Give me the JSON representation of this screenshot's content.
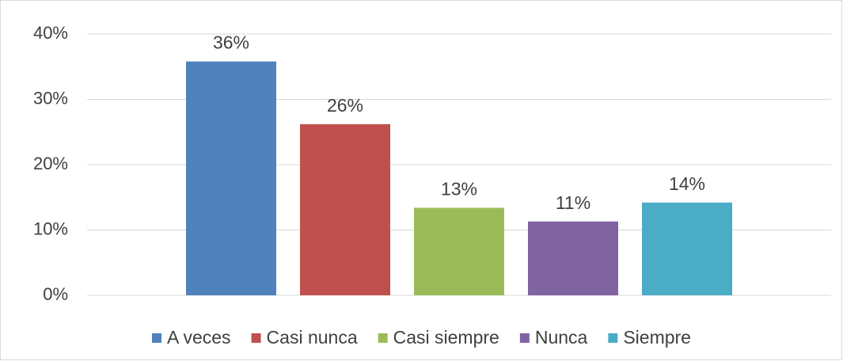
{
  "chart_data": {
    "type": "bar",
    "series": [
      {
        "name": "A veces",
        "color": "#4f81bd",
        "values": [
          35.8
        ],
        "value_labels": [
          "36%"
        ]
      },
      {
        "name": "Casi nunca",
        "color": "#c0504d",
        "values": [
          26.2
        ],
        "value_labels": [
          "26%"
        ]
      },
      {
        "name": "Casi siempre",
        "color": "#9bbb59",
        "values": [
          13.4
        ],
        "value_labels": [
          "13%"
        ]
      },
      {
        "name": "Nunca",
        "color": "#8064a2",
        "values": [
          11.3
        ],
        "value_labels": [
          "11%"
        ]
      },
      {
        "name": "Siempre",
        "color": "#4bacc6",
        "values": [
          14.2
        ],
        "value_labels": [
          "14%"
        ]
      }
    ],
    "ylim": [
      0,
      40
    ],
    "yticks": [
      {
        "value": 0,
        "label": "0%"
      },
      {
        "value": 10,
        "label": "10%"
      },
      {
        "value": 20,
        "label": "20%"
      },
      {
        "value": 30,
        "label": "30%"
      },
      {
        "value": 40,
        "label": "40%"
      }
    ],
    "grid": true,
    "legend": "bottom"
  }
}
